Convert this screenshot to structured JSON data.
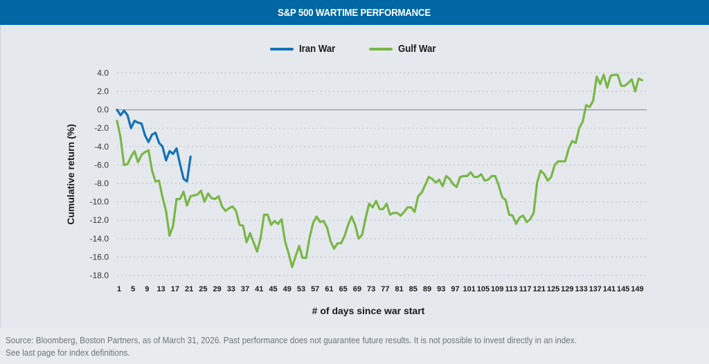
{
  "header": {
    "title": "S&P 500 WARTIME PERFORMANCE"
  },
  "colors": {
    "title_bar": "#0067a5",
    "iran": "#1372b8",
    "gulf": "#7ab648",
    "zero_line": "#9aa2a8",
    "grid": "#b9c0c6"
  },
  "chart_data": {
    "type": "line",
    "title": "S&P 500 WARTIME PERFORMANCE",
    "xlabel": "# of days since war start",
    "ylabel": "Cumulative return (%)",
    "ylim": [
      -18,
      4
    ],
    "xlim": [
      1,
      151
    ],
    "grid": true,
    "legend_position": "top-center",
    "y_ticks": [
      "4.0",
      "2.0",
      "0.0",
      "-2.0",
      "-4.0",
      "-6.0",
      "-8.0",
      "-10.0",
      "-12.0",
      "-14.0",
      "-16.0",
      "-18.0"
    ],
    "y_tick_values": [
      4,
      2,
      0,
      -2,
      -4,
      -6,
      -8,
      -10,
      -12,
      -14,
      -16,
      -18
    ],
    "x_ticks": [
      1,
      5,
      9,
      13,
      17,
      21,
      25,
      29,
      33,
      37,
      41,
      45,
      49,
      53,
      57,
      61,
      65,
      69,
      73,
      77,
      81,
      85,
      89,
      93,
      97,
      101,
      105,
      109,
      113,
      117,
      121,
      125,
      129,
      133,
      137,
      141,
      145,
      149
    ],
    "series": [
      {
        "name": "Iran War",
        "color": "#1372b8",
        "start_day": 1,
        "values": [
          0.0,
          -0.6,
          -0.1,
          -0.6,
          -2.0,
          -1.2,
          -1.4,
          -1.5,
          -2.8,
          -3.5,
          -2.7,
          -2.5,
          -3.6,
          -4.0,
          -5.5,
          -4.5,
          -4.8,
          -4.2,
          -5.9,
          -7.5,
          -7.8,
          -5.1
        ]
      },
      {
        "name": "Gulf War",
        "color": "#7ab648",
        "start_day": 1,
        "values": [
          -1.2,
          -3.0,
          -6.0,
          -5.9,
          -5.1,
          -4.5,
          -5.7,
          -4.9,
          -4.6,
          -4.4,
          -6.6,
          -7.8,
          -7.7,
          -9.5,
          -11.0,
          -13.7,
          -12.6,
          -9.7,
          -9.7,
          -8.9,
          -10.4,
          -9.4,
          -9.3,
          -9.2,
          -8.8,
          -10.0,
          -9.1,
          -9.6,
          -9.7,
          -9.4,
          -10.5,
          -11.0,
          -10.7,
          -10.5,
          -11.0,
          -12.5,
          -12.6,
          -14.4,
          -13.4,
          -14.4,
          -15.4,
          -14.0,
          -11.4,
          -11.4,
          -12.5,
          -12.1,
          -12.4,
          -11.9,
          -14.3,
          -15.6,
          -17.1,
          -15.9,
          -14.8,
          -16.1,
          -16.1,
          -13.9,
          -12.3,
          -11.6,
          -12.2,
          -12.1,
          -12.8,
          -14.3,
          -15.1,
          -14.5,
          -14.5,
          -13.7,
          -12.5,
          -11.6,
          -12.5,
          -14.0,
          -13.6,
          -11.8,
          -10.2,
          -10.6,
          -9.9,
          -10.8,
          -10.8,
          -10.2,
          -11.4,
          -11.2,
          -11.2,
          -11.5,
          -11.1,
          -10.6,
          -10.6,
          -11.1,
          -9.4,
          -9.0,
          -8.2,
          -7.3,
          -7.5,
          -7.9,
          -7.6,
          -8.3,
          -7.2,
          -7.5,
          -8.1,
          -8.4,
          -7.3,
          -7.2,
          -7.2,
          -6.8,
          -7.3,
          -7.3,
          -7.0,
          -7.7,
          -7.6,
          -7.2,
          -7.2,
          -8.2,
          -9.5,
          -9.8,
          -11.4,
          -11.5,
          -12.4,
          -11.7,
          -11.5,
          -12.2,
          -11.9,
          -11.2,
          -7.9,
          -6.6,
          -7.0,
          -7.7,
          -7.3,
          -6.0,
          -5.6,
          -5.6,
          -5.6,
          -4.2,
          -3.4,
          -3.6,
          -2.0,
          -1.3,
          0.5,
          0.3,
          1.0,
          3.6,
          2.8,
          3.8,
          2.4,
          3.7,
          3.8,
          3.8,
          2.6,
          2.6,
          2.9,
          3.3,
          2.0,
          3.4,
          3.2
        ]
      }
    ]
  },
  "legend": {
    "items": [
      {
        "label": "Iran War"
      },
      {
        "label": "Gulf War"
      }
    ]
  },
  "footer": {
    "line1": "Source: Bloomberg, Boston Partners, as of March 31, 2026. Past performance does not guarantee future results. It is not possible to invest directly in an index.",
    "line2": "See last page for index definitions."
  }
}
